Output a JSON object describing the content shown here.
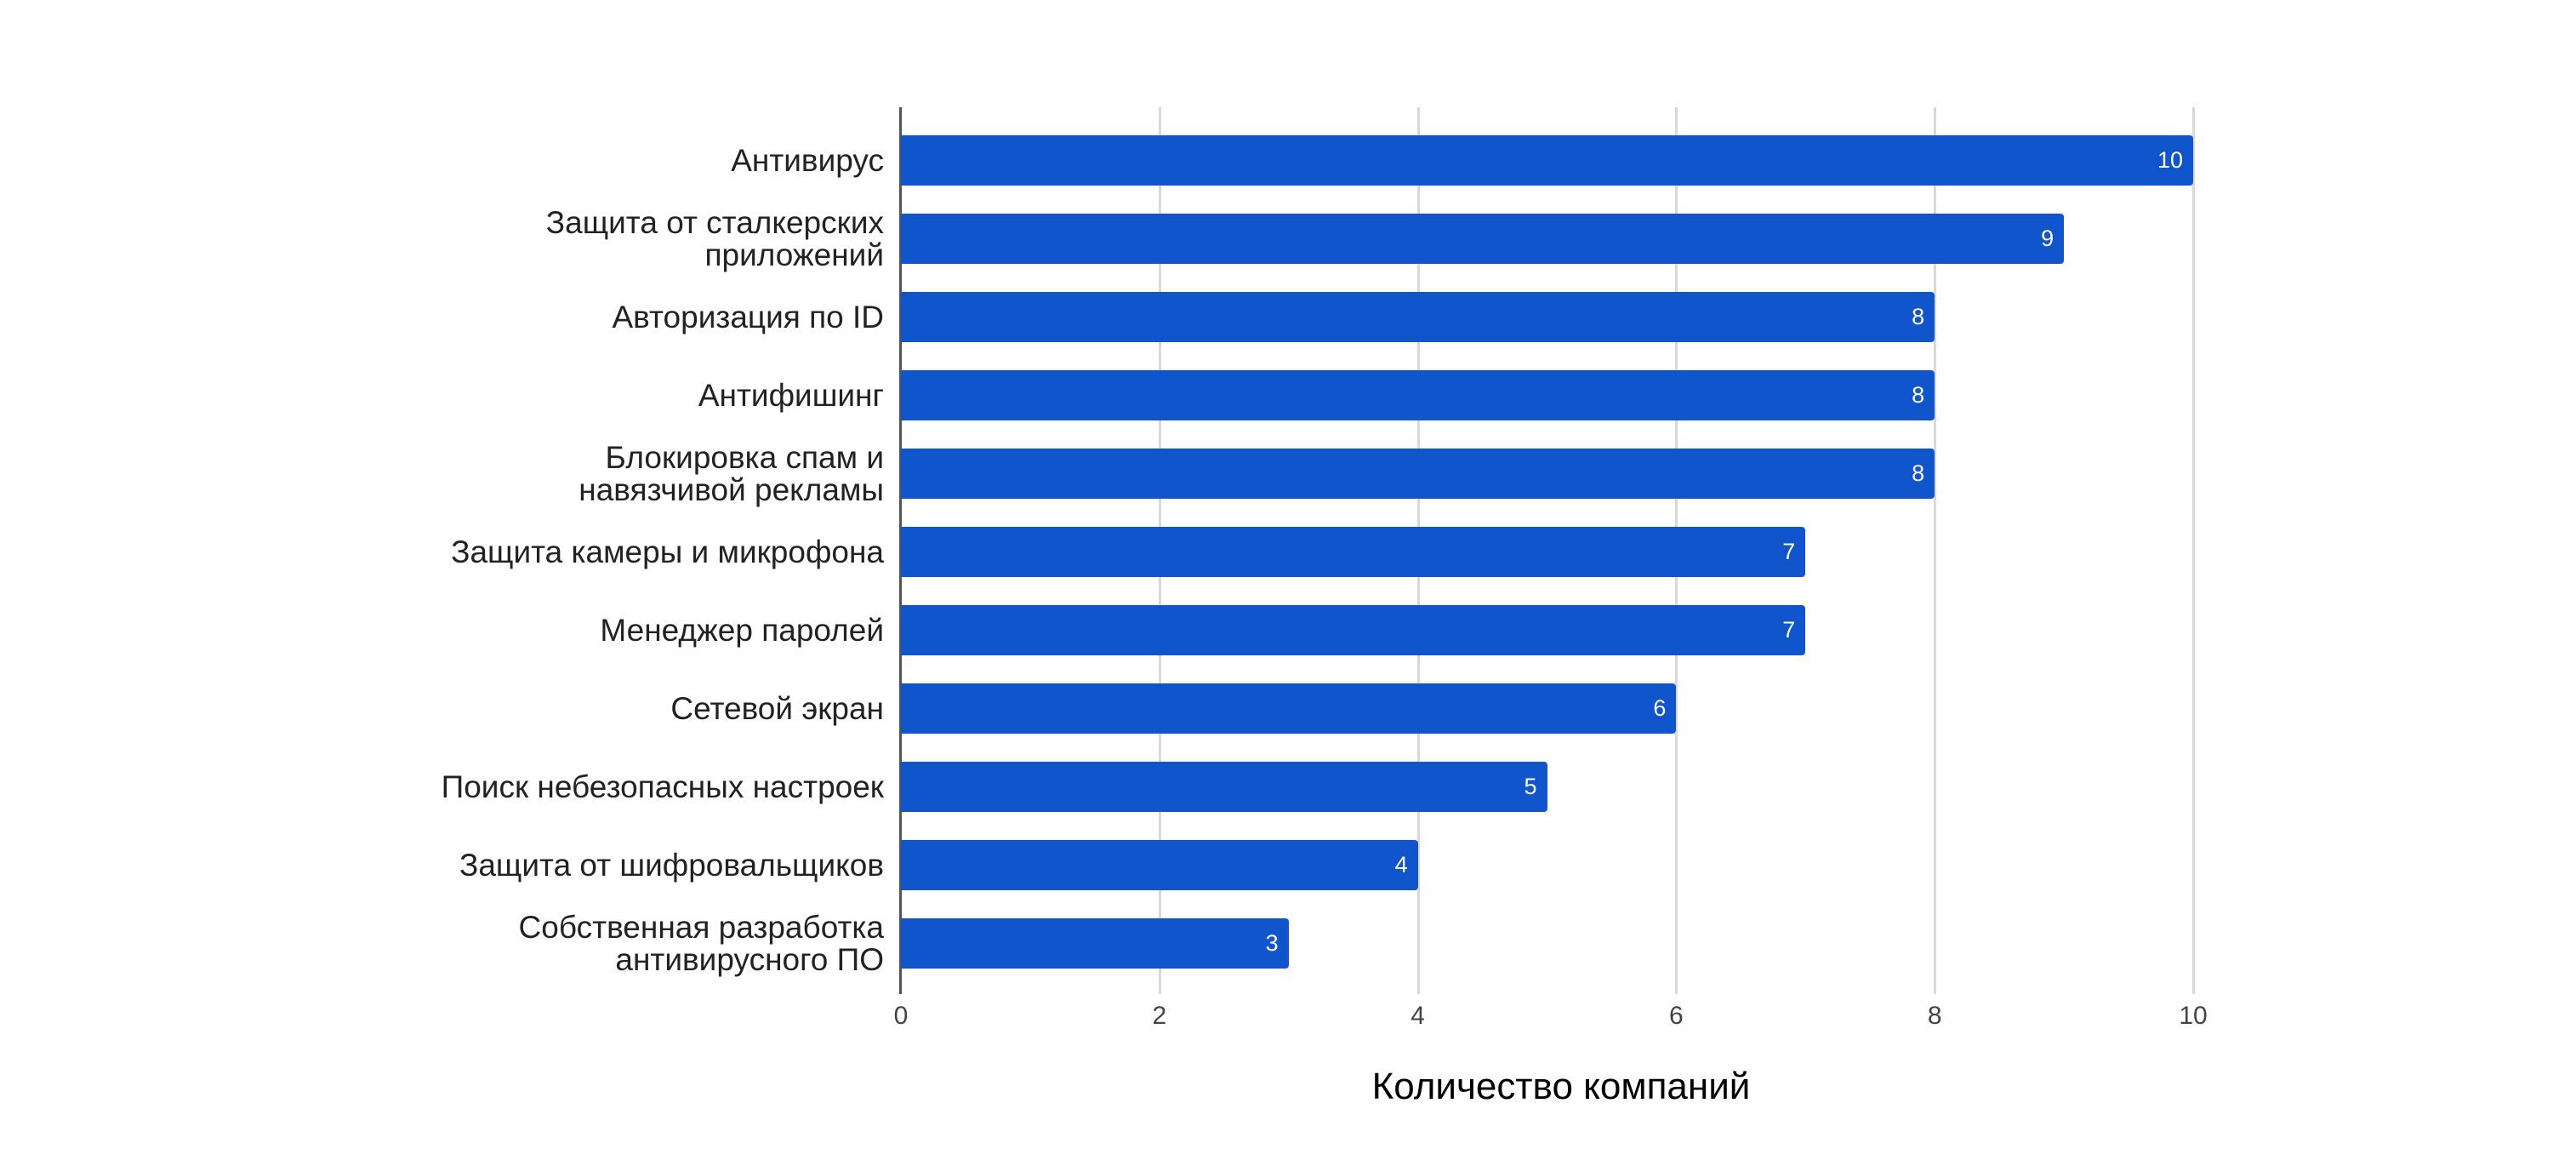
{
  "chart_data": {
    "type": "bar",
    "orientation": "horizontal",
    "title": "",
    "xlabel": "Количество компаний",
    "ylabel": "",
    "xlim": [
      0,
      10
    ],
    "xticks": [
      "0",
      "2",
      "4",
      "6",
      "8",
      "10"
    ],
    "grid": true,
    "legend": null,
    "bar_color": "#1155cc",
    "categories": [
      "Антивирус",
      "Защита от сталкерских\nприложений",
      "Авторизация по ID",
      "Антифишинг",
      "Блокировка спам и\nнавязчивой рекламы",
      "Защита камеры и микрофона",
      "Менеджер паролей",
      "Сетевой экран",
      "Поиск небезопасных настроек",
      "Защита от шифровальщиков",
      "Собственная разработка\nантивирусного ПО"
    ],
    "values": [
      10,
      9,
      8,
      8,
      8,
      7,
      7,
      6,
      5,
      4,
      3
    ],
    "data_labels": [
      "10",
      "9",
      "8",
      "8",
      "8",
      "7",
      "7",
      "6",
      "5",
      "4",
      "3"
    ]
  }
}
